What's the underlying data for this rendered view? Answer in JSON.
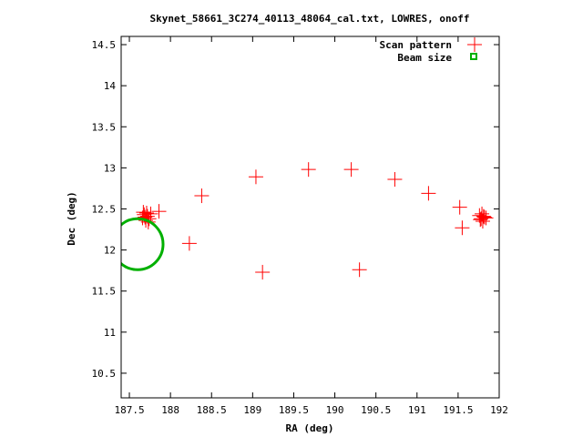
{
  "chart_data": {
    "type": "scatter",
    "title": "Skynet_58661_3C274_40113_48064_cal.txt, LOWRES, onoff",
    "xlabel": "RA (deg)",
    "ylabel": "Dec (deg)",
    "xlim": [
      187.4,
      192
    ],
    "ylim": [
      10.2,
      14.6
    ],
    "xticks": [
      "187.5",
      "188",
      "188.5",
      "189",
      "189.5",
      "190",
      "190.5",
      "191",
      "191.5",
      "192"
    ],
    "yticks": [
      "10.5",
      "11",
      "11.5",
      "12",
      "12.5",
      "13",
      "13.5",
      "14",
      "14.5"
    ],
    "legend_position": "top-right",
    "series": [
      {
        "name": "Scan pattern",
        "color": "#ff0000",
        "marker": "plus",
        "points": [
          [
            187.66,
            12.39
          ],
          [
            187.68,
            12.43
          ],
          [
            187.7,
            12.36
          ],
          [
            187.72,
            12.41
          ],
          [
            187.74,
            12.38
          ],
          [
            187.67,
            12.46
          ],
          [
            187.71,
            12.45
          ],
          [
            187.73,
            12.34
          ],
          [
            187.69,
            12.4
          ],
          [
            187.76,
            12.44
          ],
          [
            187.86,
            12.47
          ],
          [
            188.23,
            12.08
          ],
          [
            188.38,
            12.66
          ],
          [
            189.04,
            12.89
          ],
          [
            189.12,
            11.73
          ],
          [
            189.68,
            12.98
          ],
          [
            190.2,
            12.98
          ],
          [
            190.3,
            11.76
          ],
          [
            190.73,
            12.86
          ],
          [
            191.14,
            12.69
          ],
          [
            191.52,
            12.52
          ],
          [
            191.55,
            12.27
          ],
          [
            191.76,
            12.42
          ],
          [
            191.78,
            12.38
          ],
          [
            191.8,
            12.35
          ],
          [
            191.82,
            12.4
          ],
          [
            191.79,
            12.44
          ],
          [
            191.77,
            12.37
          ],
          [
            191.81,
            12.41
          ],
          [
            191.84,
            12.39
          ]
        ]
      },
      {
        "name": "Beam size",
        "color": "#00b000",
        "marker": "ring",
        "circle": {
          "center": [
            187.6,
            12.07
          ],
          "radius_deg": 0.31
        }
      }
    ]
  }
}
